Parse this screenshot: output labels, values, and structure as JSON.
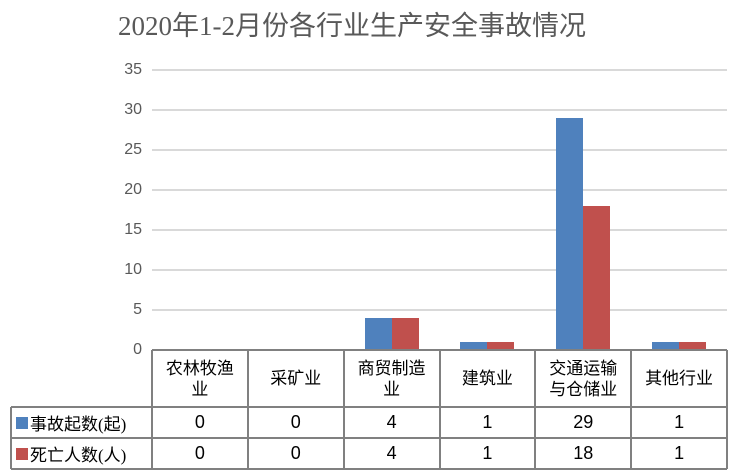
{
  "title": "2020年1-2月份各行业生产安全事故情况",
  "chart_data": {
    "type": "bar",
    "title": "2020年1-2月份各行业生产安全事故情况",
    "categories": [
      "农林牧渔业",
      "采矿业",
      "商贸制造业",
      "建筑业",
      "交通运输与仓储业",
      "其他行业"
    ],
    "series": [
      {
        "name": "事故起数(起)",
        "color": "#4F81BD",
        "values": [
          0,
          0,
          4,
          1,
          29,
          1
        ]
      },
      {
        "name": "死亡人数(人)",
        "color": "#C0504D",
        "values": [
          0,
          0,
          4,
          1,
          18,
          1
        ]
      }
    ],
    "xlabel": "",
    "ylabel": "",
    "ylim": [
      0,
      35
    ],
    "yticks": [
      0,
      5,
      10,
      15,
      20,
      25,
      30,
      35
    ],
    "grid": true,
    "legend_position": "data-table-left",
    "data_table_shown": true,
    "colors": {
      "gridline": "#D9D9D9",
      "table_border": "#808080",
      "title_text": "#595959",
      "tick_text": "#595959",
      "value_text": "#000000",
      "background": "#FFFFFF"
    }
  }
}
